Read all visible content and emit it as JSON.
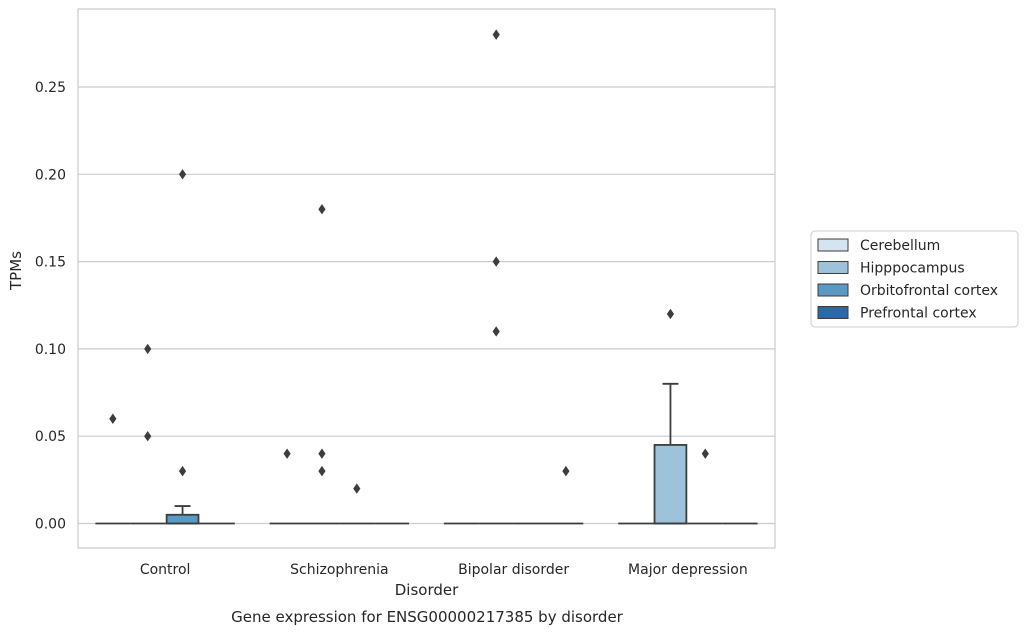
{
  "chart_data": {
    "type": "box",
    "xlabel": "Disorder",
    "ylabel": "TPMs",
    "caption": "Gene expression for ENSG00000217385 by disorder",
    "categories": [
      "Control",
      "Schizophrenia",
      "Bipolar disorder",
      "Major depression"
    ],
    "ylim": [
      -0.014,
      0.294
    ],
    "yticks": [
      0.0,
      0.05,
      0.1,
      0.15,
      0.2,
      0.25
    ],
    "ytick_labels": [
      "0.00",
      "0.05",
      "0.10",
      "0.15",
      "0.20",
      "0.25"
    ],
    "grid": "horizontal",
    "legend_position": "right",
    "series": [
      {
        "name": "Cerebellum",
        "color": "#d6e4f1",
        "boxes": [
          {
            "q1": 0,
            "median": 0,
            "q3": 0,
            "whisker_low": 0,
            "whisker_high": 0,
            "outliers": []
          },
          {
            "q1": 0,
            "median": 0,
            "q3": 0,
            "whisker_low": 0,
            "whisker_high": 0,
            "outliers": []
          },
          {
            "q1": 0,
            "median": 0,
            "q3": 0,
            "whisker_low": 0,
            "whisker_high": 0,
            "outliers": []
          },
          {
            "q1": 0,
            "median": 0,
            "q3": 0,
            "whisker_low": 0,
            "whisker_high": 0,
            "outliers": []
          }
        ]
      },
      {
        "name": "Hipppocampus",
        "color": "#9dc3db",
        "boxes": [
          {
            "q1": 0,
            "median": 0,
            "q3": 0,
            "whisker_low": 0,
            "whisker_high": 0,
            "outliers": [
              0.1,
              0.05
            ]
          },
          {
            "q1": 0,
            "median": 0,
            "q3": 0,
            "whisker_low": 0,
            "whisker_high": 0,
            "outliers": [
              0.18,
              0.04,
              0.03
            ]
          },
          {
            "q1": 0,
            "median": 0,
            "q3": 0,
            "whisker_low": 0,
            "whisker_high": 0,
            "outliers": [
              0.28,
              0.15,
              0.11
            ]
          },
          {
            "q1": 0,
            "median": 0,
            "q3": 0.045,
            "whisker_low": 0,
            "whisker_high": 0.08,
            "outliers": [
              0.12
            ]
          }
        ]
      },
      {
        "name": "Orbitofrontal cortex",
        "color": "#5a99c4",
        "boxes": [
          {
            "q1": 0,
            "median": 0,
            "q3": 0.005,
            "whisker_low": 0,
            "whisker_high": 0.01,
            "outliers": [
              0.2,
              0.03
            ]
          },
          {
            "q1": 0,
            "median": 0,
            "q3": 0,
            "whisker_low": 0,
            "whisker_high": 0,
            "outliers": [
              0.02
            ]
          },
          {
            "q1": 0,
            "median": 0,
            "q3": 0,
            "whisker_low": 0,
            "whisker_high": 0,
            "outliers": []
          },
          {
            "q1": 0,
            "median": 0,
            "q3": 0,
            "whisker_low": 0,
            "whisker_high": 0,
            "outliers": [
              0.04
            ]
          }
        ]
      },
      {
        "name": "Prefrontal cortex",
        "color": "#2a68a8",
        "boxes": [
          {
            "q1": 0,
            "median": 0,
            "q3": 0,
            "whisker_low": 0,
            "whisker_high": 0,
            "outliers": []
          },
          {
            "q1": 0,
            "median": 0,
            "q3": 0,
            "whisker_low": 0,
            "whisker_high": 0,
            "outliers": []
          },
          {
            "q1": 0,
            "median": 0,
            "q3": 0,
            "whisker_low": 0,
            "whisker_high": 0,
            "outliers": [
              0.03
            ]
          },
          {
            "q1": 0,
            "median": 0,
            "q3": 0,
            "whisker_low": 0,
            "whisker_high": 0,
            "outliers": []
          }
        ]
      }
    ],
    "extra_outliers": [
      {
        "category": 0,
        "series": 0,
        "value": 0.06
      },
      {
        "category": 1,
        "series": 0,
        "value": 0.04
      }
    ]
  }
}
